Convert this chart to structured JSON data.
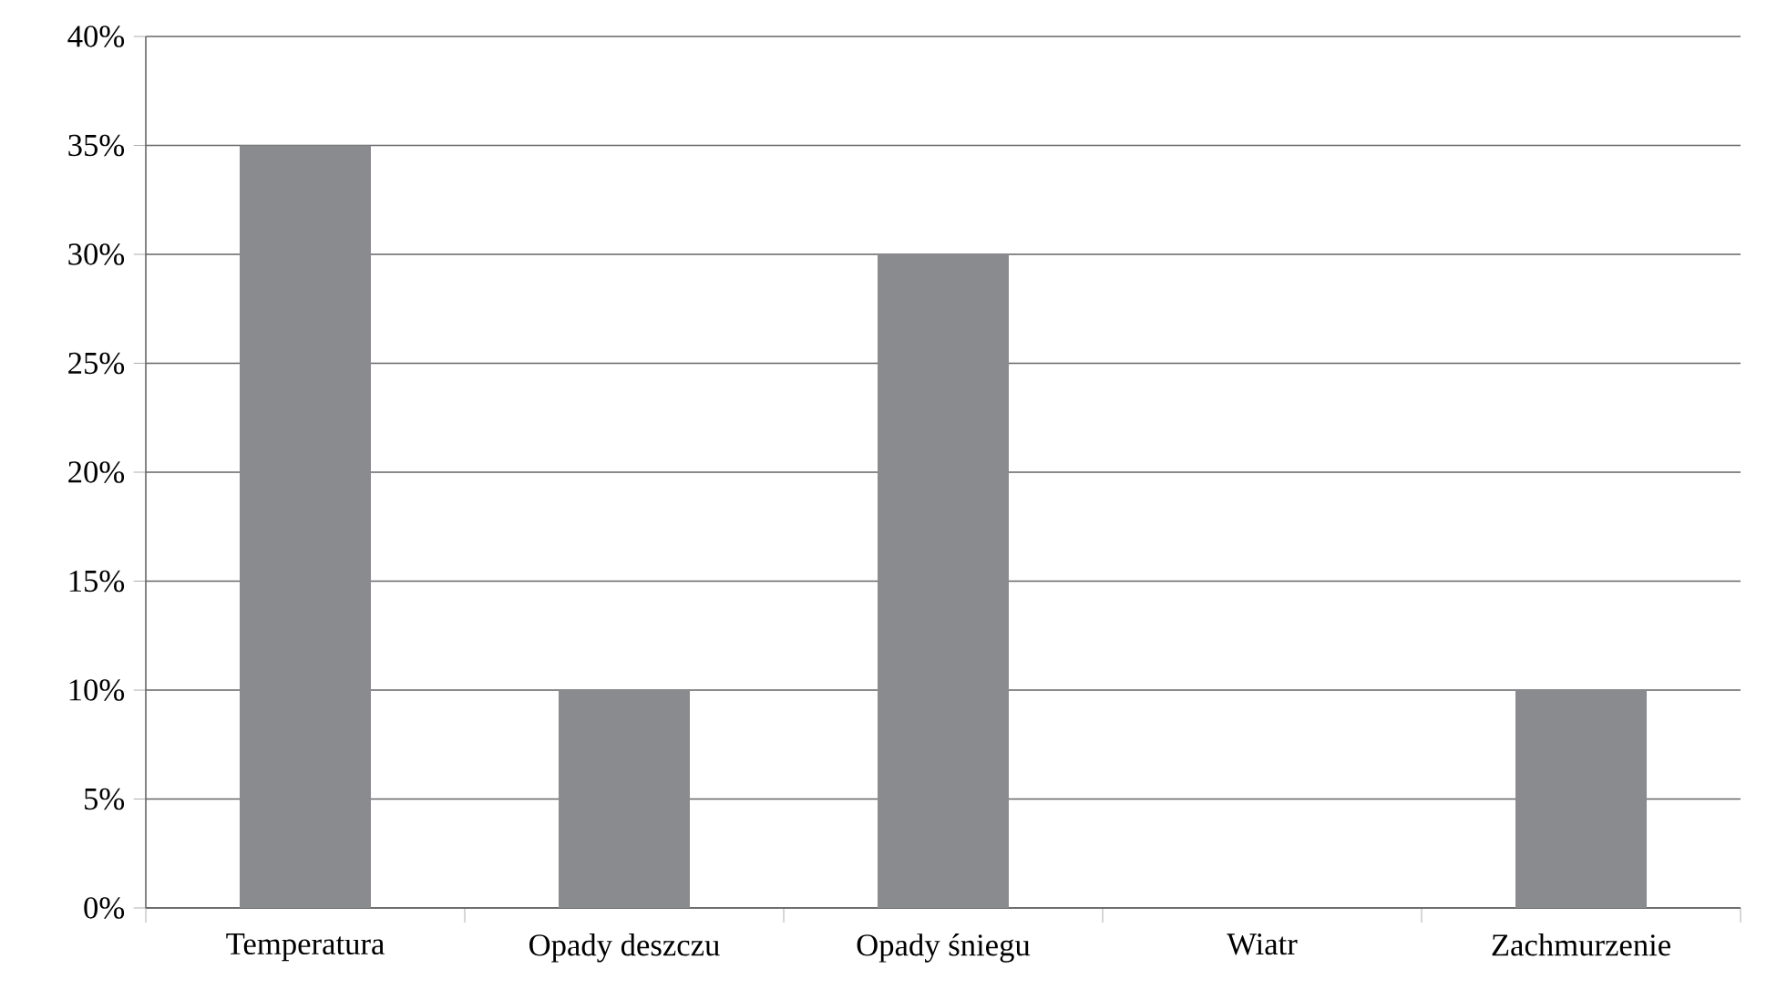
{
  "chart_data": {
    "type": "bar",
    "categories": [
      "Temperatura",
      "Opady deszczu",
      "Opady śniegu",
      "Wiatr",
      "Zachmurzenie"
    ],
    "values": [
      35,
      10,
      30,
      0,
      10
    ],
    "color": "#8a8b8f",
    "ylim": [
      0,
      40
    ],
    "yticks": [
      {
        "value": 0,
        "label": "0%"
      },
      {
        "value": 5,
        "label": "5%"
      },
      {
        "value": 10,
        "label": "10%"
      },
      {
        "value": 15,
        "label": "15%"
      },
      {
        "value": 20,
        "label": "20%"
      },
      {
        "value": 25,
        "label": "25%"
      },
      {
        "value": 30,
        "label": "30%"
      },
      {
        "value": 35,
        "label": "35%"
      },
      {
        "value": 40,
        "label": "40%"
      }
    ],
    "grid": "y"
  }
}
